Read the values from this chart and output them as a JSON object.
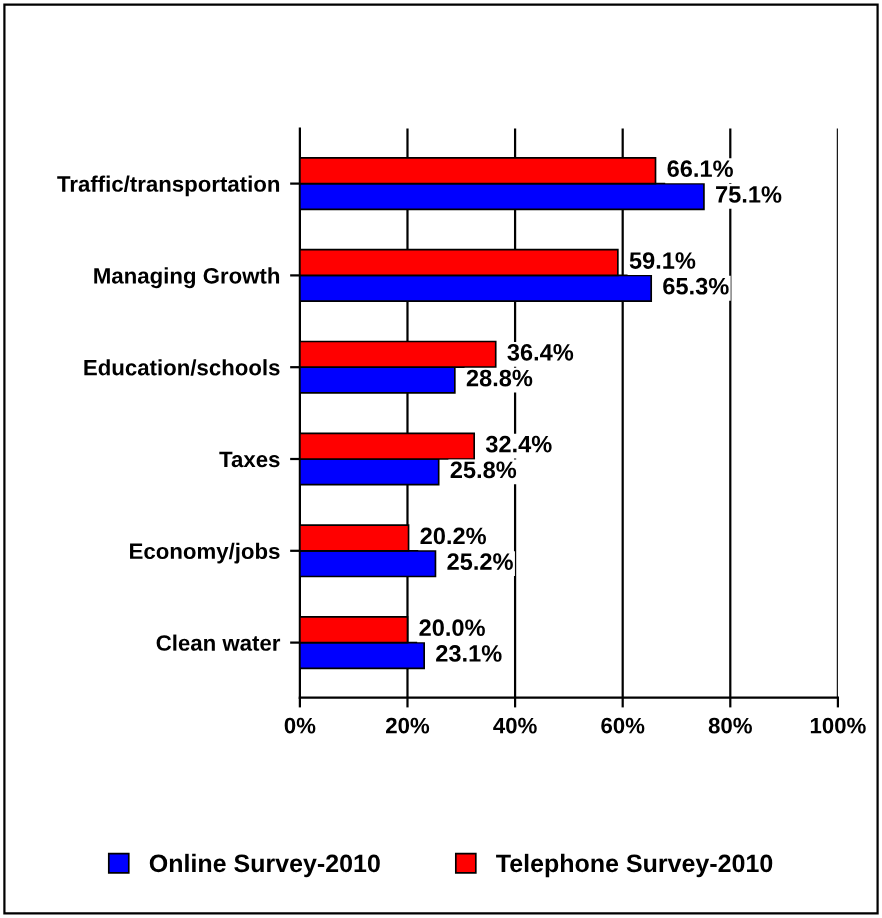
{
  "chart_data": {
    "type": "bar",
    "orientation": "horizontal",
    "categories": [
      "Traffic/transportation",
      "Managing Growth",
      "Education/schools",
      "Taxes",
      "Economy/jobs",
      "Clean water"
    ],
    "series": [
      {
        "name": "Online Survey-2010",
        "color": "#0000ff",
        "values": [
          75.1,
          65.3,
          28.8,
          25.8,
          25.2,
          23.1
        ],
        "value_labels": [
          "75.1%",
          "65.3%",
          "28.8%",
          "25.8%",
          "25.2%",
          "23.1%"
        ]
      },
      {
        "name": "Telephone Survey-2010",
        "color": "#ff0000",
        "values": [
          66.1,
          59.1,
          36.4,
          32.4,
          20.2,
          20.0
        ],
        "value_labels": [
          "66.1%",
          "59.1%",
          "36.4%",
          "32.4%",
          "20.2%",
          "20.0%"
        ]
      }
    ],
    "xlim": [
      0,
      100
    ],
    "xticks": [
      {
        "value": 0,
        "label": "0%"
      },
      {
        "value": 20,
        "label": "20%"
      },
      {
        "value": 40,
        "label": "40%"
      },
      {
        "value": 60,
        "label": "60%"
      },
      {
        "value": 80,
        "label": "80%"
      },
      {
        "value": 100,
        "label": "100%"
      }
    ],
    "grid": "x",
    "legend": "bottom"
  }
}
